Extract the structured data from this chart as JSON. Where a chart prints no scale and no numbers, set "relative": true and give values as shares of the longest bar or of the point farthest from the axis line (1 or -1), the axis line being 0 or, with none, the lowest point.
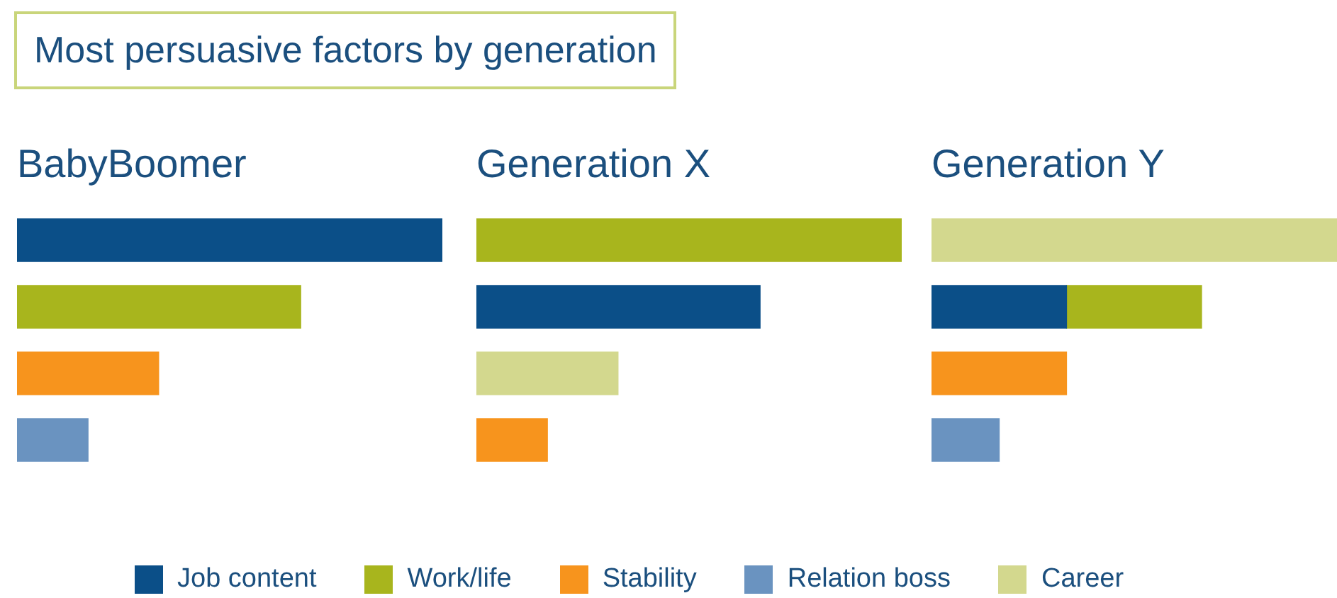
{
  "chart_data": [
    {
      "type": "other",
      "title": "Most persuasive factors by generation"
    },
    {
      "type": "bar",
      "title": "BabyBoomer",
      "orientation": "horizontal",
      "stacked": true,
      "relative": true,
      "tick_labels": false,
      "legend": "bottom",
      "categories": [
        null,
        null,
        null,
        null
      ],
      "series": [
        {
          "name": "Job content",
          "color": "#0b4f88",
          "values": [
            1,
            null,
            null,
            null
          ]
        },
        {
          "name": "Work/life",
          "color": "#a8b51d",
          "values": [
            null,
            0.667,
            null,
            null
          ]
        },
        {
          "name": "Stability",
          "color": "#f7941d",
          "values": [
            null,
            null,
            0.333,
            null
          ]
        },
        {
          "name": "Relation boss",
          "color": "#6a93c0",
          "values": [
            null,
            null,
            null,
            0.167
          ]
        }
      ]
    },
    {
      "type": "bar",
      "title": "Generation X",
      "orientation": "horizontal",
      "stacked": true,
      "relative": true,
      "tick_labels": false,
      "legend": "bottom",
      "categories": [
        null,
        null,
        null,
        null
      ],
      "series": [
        {
          "name": "Work/life",
          "color": "#a8b51d",
          "values": [
            1,
            null,
            null,
            null
          ]
        },
        {
          "name": "Job content",
          "color": "#0b4f88",
          "values": [
            null,
            0.667,
            null,
            null
          ]
        },
        {
          "name": "Career",
          "color": "#d3d88e",
          "values": [
            null,
            null,
            0.333,
            null
          ]
        },
        {
          "name": "Stability",
          "color": "#f7941d",
          "values": [
            null,
            null,
            null,
            0.167
          ]
        }
      ]
    },
    {
      "type": "bar",
      "title": "Generation Y",
      "orientation": "horizontal",
      "stacked": true,
      "relative": true,
      "tick_labels": false,
      "legend": "bottom",
      "categories": [
        null,
        null,
        null,
        null
      ],
      "series": [
        {
          "name": "Career",
          "color": "#d3d88e",
          "values": [
            1,
            null,
            null,
            null
          ]
        },
        {
          "name": "Job content",
          "color": "#0b4f88",
          "values": [
            null,
            0.333,
            null,
            null
          ]
        },
        {
          "name": "Work/life",
          "color": "#a8b51d",
          "values": [
            null,
            0.333,
            null,
            null
          ]
        },
        {
          "name": "Stability",
          "color": "#f7941d",
          "values": [
            null,
            null,
            0.333,
            null
          ]
        },
        {
          "name": "Relation boss",
          "color": "#6a93c0",
          "values": [
            null,
            null,
            null,
            0.167
          ]
        }
      ]
    }
  ]
}
